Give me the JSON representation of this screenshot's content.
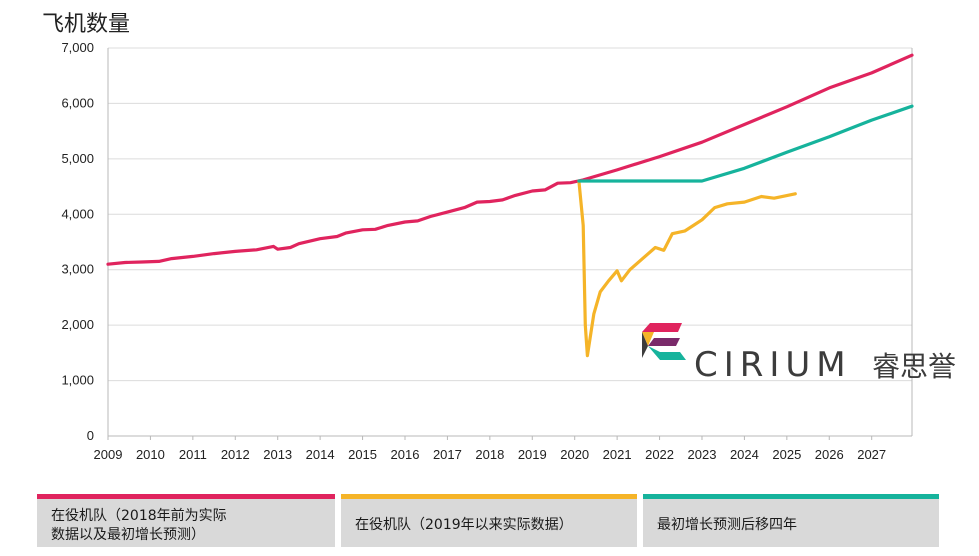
{
  "chart_data": {
    "type": "line",
    "title": "飞机数量",
    "xlabel": "",
    "ylabel": "",
    "x_ticks": [
      "2009",
      "2010",
      "2011",
      "2012",
      "2013",
      "2014",
      "2015",
      "2016",
      "2017",
      "2018",
      "2019",
      "2020",
      "2021",
      "2022",
      "2023",
      "2024",
      "2025",
      "2026",
      "2027"
    ],
    "y_ticks": [
      "0",
      "1,000",
      "2,000",
      "3,000",
      "4,000",
      "5,000",
      "6,000",
      "7,000"
    ],
    "xlim": [
      2009,
      2027.95
    ],
    "ylim": [
      0,
      7000
    ],
    "grid": true,
    "legend_position": "bottom",
    "series": [
      {
        "name": "在役机队（2018年前为实际数据以及最初增长预测）",
        "color": "#e0245e",
        "points": [
          [
            2009.0,
            3100
          ],
          [
            2009.4,
            3130
          ],
          [
            2009.8,
            3140
          ],
          [
            2010.2,
            3150
          ],
          [
            2010.5,
            3200
          ],
          [
            2011.0,
            3240
          ],
          [
            2011.5,
            3290
          ],
          [
            2012.0,
            3330
          ],
          [
            2012.5,
            3360
          ],
          [
            2012.9,
            3420
          ],
          [
            2013.0,
            3370
          ],
          [
            2013.3,
            3400
          ],
          [
            2013.5,
            3470
          ],
          [
            2014.0,
            3560
          ],
          [
            2014.4,
            3600
          ],
          [
            2014.6,
            3660
          ],
          [
            2015.0,
            3720
          ],
          [
            2015.3,
            3730
          ],
          [
            2015.6,
            3800
          ],
          [
            2016.0,
            3860
          ],
          [
            2016.3,
            3880
          ],
          [
            2016.6,
            3960
          ],
          [
            2017.0,
            4040
          ],
          [
            2017.4,
            4120
          ],
          [
            2017.7,
            4220
          ],
          [
            2018.0,
            4230
          ],
          [
            2018.3,
            4260
          ],
          [
            2018.6,
            4340
          ],
          [
            2019.0,
            4420
          ],
          [
            2019.3,
            4440
          ],
          [
            2019.6,
            4560
          ],
          [
            2019.9,
            4570
          ],
          [
            2020.2,
            4620
          ],
          [
            2021.0,
            4800
          ],
          [
            2022.0,
            5040
          ],
          [
            2023.0,
            5300
          ],
          [
            2024.0,
            5620
          ],
          [
            2025.0,
            5940
          ],
          [
            2026.0,
            6280
          ],
          [
            2027.0,
            6550
          ],
          [
            2027.95,
            6870
          ]
        ]
      },
      {
        "name": "在役机队（2019年以来实际数据）",
        "color": "#f5b428",
        "points": [
          [
            2020.1,
            4600
          ],
          [
            2020.2,
            3800
          ],
          [
            2020.25,
            2000
          ],
          [
            2020.3,
            1450
          ],
          [
            2020.45,
            2200
          ],
          [
            2020.6,
            2600
          ],
          [
            2020.8,
            2800
          ],
          [
            2021.0,
            2980
          ],
          [
            2021.1,
            2800
          ],
          [
            2021.3,
            3000
          ],
          [
            2021.6,
            3200
          ],
          [
            2021.9,
            3400
          ],
          [
            2022.1,
            3350
          ],
          [
            2022.3,
            3650
          ],
          [
            2022.6,
            3700
          ],
          [
            2022.8,
            3800
          ],
          [
            2023.0,
            3900
          ],
          [
            2023.3,
            4120
          ],
          [
            2023.6,
            4190
          ],
          [
            2024.0,
            4220
          ],
          [
            2024.4,
            4320
          ],
          [
            2024.7,
            4290
          ],
          [
            2025.2,
            4370
          ]
        ]
      },
      {
        "name": "最初增长预测后移四年",
        "color": "#16b39c",
        "points": [
          [
            2020.1,
            4600
          ],
          [
            2023.0,
            4600
          ],
          [
            2024.0,
            4830
          ],
          [
            2025.0,
            5120
          ],
          [
            2026.0,
            5400
          ],
          [
            2027.0,
            5700
          ],
          [
            2027.95,
            5950
          ]
        ]
      }
    ]
  },
  "legend": [
    {
      "line1": "在役机队（2018年前为实际",
      "line2": "数据以及最初增长预测）",
      "color": "#e0245e"
    },
    {
      "line1": "在役机队（2019年以来实际数据）",
      "line2": "",
      "color": "#f5b428"
    },
    {
      "line1": "最初增长预测后移四年",
      "line2": "",
      "color": "#16b39c"
    }
  ],
  "watermark": {
    "text": "CIRIUM",
    "cn": "睿思誉"
  }
}
